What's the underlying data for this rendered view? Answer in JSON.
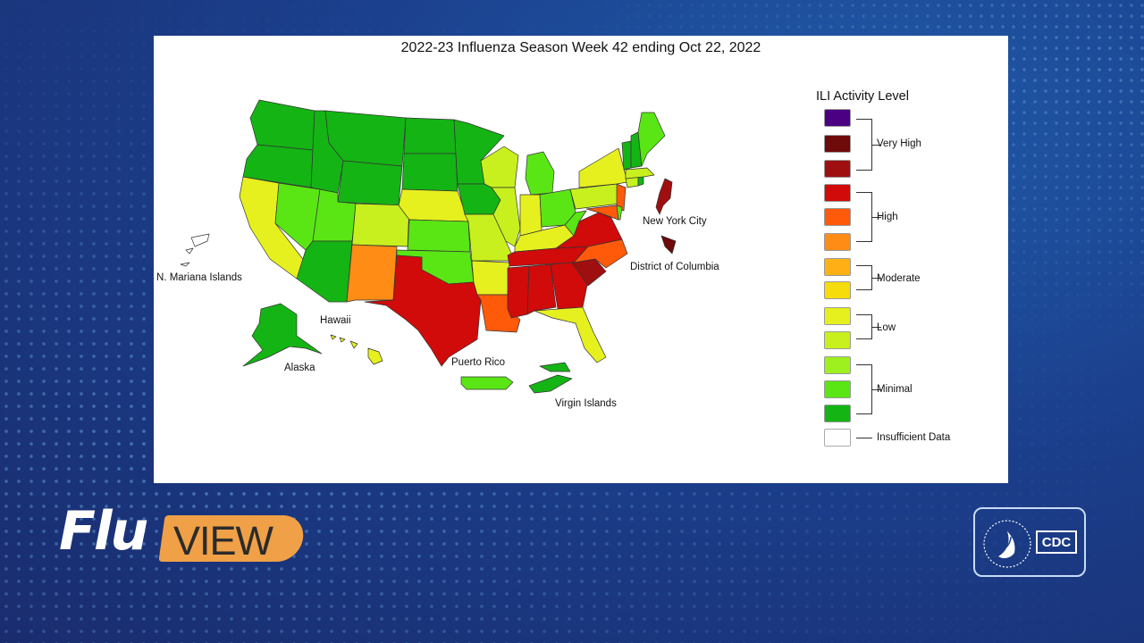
{
  "map": {
    "title": "2022-23 Influenza Season Week 42 ending Oct 22, 2022",
    "region_labels": {
      "nyc": "New York City",
      "dc": "District of Columbia",
      "nmi": "N. Mariana Islands",
      "hawaii": "Hawaii",
      "alaska": "Alaska",
      "puerto_rico": "Puerto Rico",
      "virgin_islands": "Virgin Islands"
    },
    "legend": {
      "title": "ILI Activity Level",
      "levels": [
        {
          "level": 13,
          "color": "#4b0082"
        },
        {
          "level": 12,
          "color": "#6e0a0a"
        },
        {
          "level": 11,
          "color": "#a00f0f"
        },
        {
          "level": 10,
          "color": "#d10a0a"
        },
        {
          "level": 9,
          "color": "#ff5a0a"
        },
        {
          "level": 8,
          "color": "#ff8c14"
        },
        {
          "level": 7,
          "color": "#ffb014"
        },
        {
          "level": 6,
          "color": "#f5dc0a"
        },
        {
          "level": 5,
          "color": "#e6f01e"
        },
        {
          "level": 4,
          "color": "#c8f01e"
        },
        {
          "level": 3,
          "color": "#9ef01e"
        },
        {
          "level": 2,
          "color": "#5ae614"
        },
        {
          "level": 1,
          "color": "#14b414"
        },
        {
          "level": 0,
          "color": "#ffffff"
        }
      ],
      "groups": {
        "very_high": "Very High",
        "high": "High",
        "moderate": "Moderate",
        "low": "Low",
        "minimal": "Minimal",
        "insufficient": "Insufficient Data"
      }
    },
    "region_levels": {
      "WA": 1,
      "OR": 1,
      "CA": 5,
      "NV": 2,
      "ID": 1,
      "MT": 1,
      "WY": 1,
      "UT": 2,
      "AZ": 1,
      "CO": 4,
      "NM": 8,
      "ND": 1,
      "SD": 1,
      "NE": 5,
      "KS": 2,
      "OK": 2,
      "TX": 10,
      "MN": 1,
      "IA": 1,
      "MO": 4,
      "AR": 5,
      "LA": 9,
      "WI": 4,
      "IL": 4,
      "MI": 2,
      "IN": 5,
      "OH": 2,
      "KY": 5,
      "TN": 10,
      "MS": 10,
      "AL": 10,
      "GA": 10,
      "FL": 5,
      "SC": 11,
      "NC": 9,
      "VA": 10,
      "WV": 2,
      "PA": 4,
      "NY": 5,
      "VT": 1,
      "NH": 1,
      "ME": 2,
      "MA": 4,
      "CT": 4,
      "RI": 1,
      "NJ": 9,
      "DE": 2,
      "MD": 9,
      "NYC": 11,
      "DC": 12,
      "HI": 5,
      "AK": 1,
      "PR": 2,
      "VI": 1,
      "NMI": 0
    }
  },
  "branding": {
    "flu": "Flu",
    "view": "VIEW",
    "cdc": "CDC"
  }
}
